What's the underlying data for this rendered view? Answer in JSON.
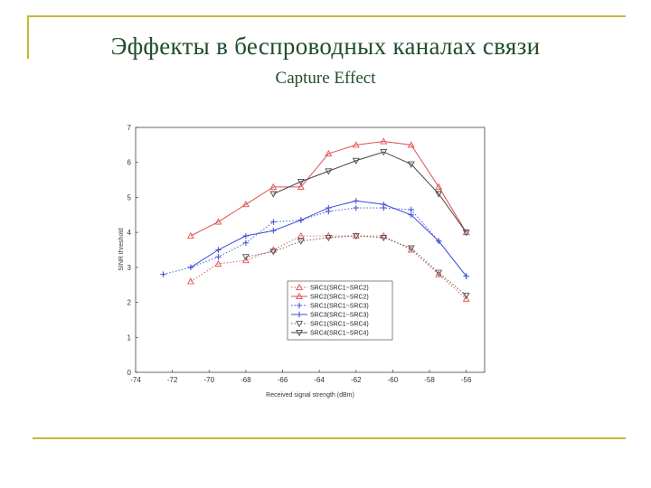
{
  "slide": {
    "title": "Эффекты в беспроводных каналах связи",
    "subtitle": "Capture Effect",
    "accent_color": "#c9b735",
    "title_color": "#1f4d2a"
  },
  "chart_data": {
    "type": "line",
    "title": "",
    "xlabel": "Received signal strength (dBm)",
    "ylabel": "SINR threshold",
    "xlim": [
      -74,
      -55
    ],
    "ylim": [
      0,
      7
    ],
    "xticks": [
      -74,
      -72,
      -70,
      -68,
      -66,
      -64,
      -62,
      -60,
      -58,
      -56
    ],
    "yticks": [
      0,
      1,
      2,
      3,
      4,
      5,
      6,
      7
    ],
    "grid": false,
    "legend_position": "lower-right",
    "series": [
      {
        "name": "SRC1(SRC1~SRC2)",
        "color": "#e05050",
        "style": "dotted",
        "marker": "triangle-up",
        "x": [
          -71,
          -69.5,
          -68,
          -66.5,
          -65,
          -63.5,
          -62,
          -60.5,
          -59,
          -57.5,
          -56
        ],
        "y": [
          2.6,
          3.1,
          3.2,
          3.5,
          3.9,
          3.9,
          3.9,
          3.9,
          3.5,
          2.8,
          2.1
        ]
      },
      {
        "name": "SRC2(SRC1~SRC2)",
        "color": "#e05050",
        "style": "solid",
        "marker": "triangle-up",
        "x": [
          -71,
          -69.5,
          -68,
          -66.5,
          -65,
          -63.5,
          -62,
          -60.5,
          -59,
          -57.5,
          -56
        ],
        "y": [
          3.9,
          4.3,
          4.8,
          5.3,
          5.3,
          6.25,
          6.5,
          6.6,
          6.5,
          5.3,
          4.0
        ]
      },
      {
        "name": "SRC1(SRC1~SRC3)",
        "color": "#3b4ad8",
        "style": "dotted",
        "marker": "plus",
        "x": [
          -72.5,
          -71,
          -69.5,
          -68,
          -66.5,
          -65,
          -63.5,
          -62,
          -60.5,
          -59,
          -57.5,
          -56
        ],
        "y": [
          2.8,
          3.0,
          3.3,
          3.7,
          4.3,
          4.35,
          4.6,
          4.7,
          4.7,
          4.65,
          3.75,
          2.75
        ]
      },
      {
        "name": "SRC3(SRC1~SRC3)",
        "color": "#3b4ad8",
        "style": "solid",
        "marker": "plus",
        "x": [
          -71,
          -69.5,
          -68,
          -66.5,
          -65,
          -63.5,
          -62,
          -60.5,
          -59,
          -57.5,
          -56
        ],
        "y": [
          3.0,
          3.5,
          3.9,
          4.05,
          4.35,
          4.7,
          4.9,
          4.8,
          4.5,
          3.75,
          2.75
        ]
      },
      {
        "name": "SRC1(SRC1~SRC4)",
        "color": "#555555",
        "style": "dotted",
        "marker": "triangle-down",
        "x": [
          -68,
          -66.5,
          -65,
          -63.5,
          -62,
          -60.5,
          -59,
          -57.5,
          -56
        ],
        "y": [
          3.3,
          3.45,
          3.75,
          3.85,
          3.9,
          3.85,
          3.55,
          2.85,
          2.2
        ]
      },
      {
        "name": "SRC4(SRC1~SRC4)",
        "color": "#444444",
        "style": "solid",
        "marker": "triangle-down",
        "x": [
          -66.5,
          -65,
          -63.5,
          -62,
          -60.5,
          -59,
          -57.5,
          -56
        ],
        "y": [
          5.1,
          5.45,
          5.75,
          6.05,
          6.3,
          5.95,
          5.1,
          4.0
        ]
      }
    ]
  }
}
